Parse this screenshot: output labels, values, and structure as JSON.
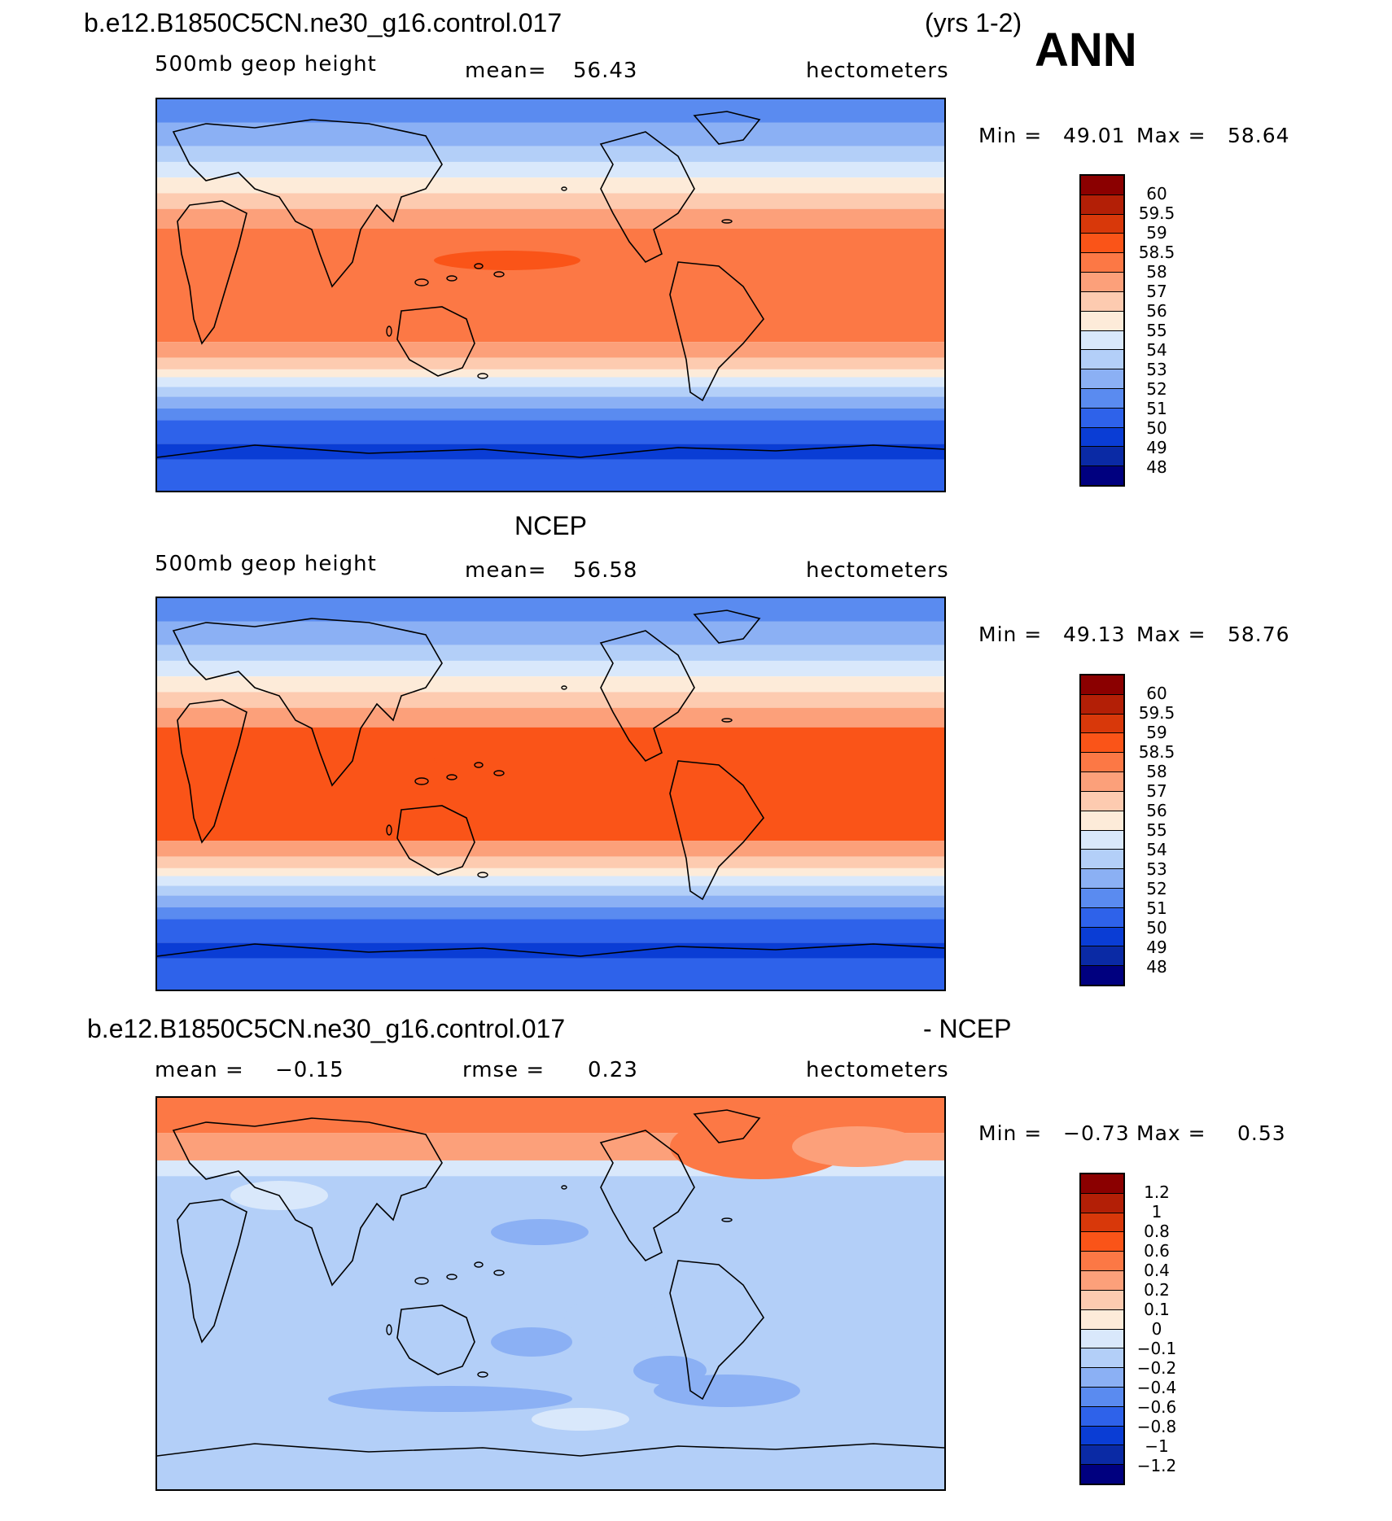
{
  "header": {
    "case_name": "b.e12.B1850C5CN.ne30_g16.control.017",
    "years": "(yrs 1-2)",
    "season": "ANN"
  },
  "panels": [
    {
      "title": "",
      "variable": "500mb geop height",
      "stat1_label": "mean=",
      "stat1_value": "56.43",
      "stat2_label": "",
      "stat2_value": "",
      "units": "hectometers",
      "min_label": "Min =",
      "min_value": "49.01",
      "max_label": "Max =",
      "max_value": "58.64",
      "levels": [
        "60",
        "59.5",
        "59",
        "58.5",
        "58",
        "57",
        "56",
        "55",
        "54",
        "53",
        "52",
        "51",
        "50",
        "49",
        "48"
      ],
      "colors": [
        "#8b0000",
        "#b31f06",
        "#d8380a",
        "#fa5418",
        "#fc7845",
        "#fca07a",
        "#fdcbb0",
        "#fdebd9",
        "#d9e8fb",
        "#b3cff8",
        "#8bb0f4",
        "#5a8bf0",
        "#2e62ea",
        "#0a3dd5",
        "#0a2aa5",
        "#00007f"
      ],
      "ocean_color": "#fc7845",
      "land_color": "#fa6d35"
    },
    {
      "title": "NCEP",
      "variable": "500mb geop height",
      "stat1_label": "mean=",
      "stat1_value": "56.58",
      "stat2_label": "",
      "stat2_value": "",
      "units": "hectometers",
      "min_label": "Min =",
      "min_value": "49.13",
      "max_label": "Max =",
      "max_value": "58.76",
      "levels": [
        "60",
        "59.5",
        "59",
        "58.5",
        "58",
        "57",
        "56",
        "55",
        "54",
        "53",
        "52",
        "51",
        "50",
        "49",
        "48"
      ],
      "colors": [
        "#8b0000",
        "#b31f06",
        "#d8380a",
        "#fa5418",
        "#fc7845",
        "#fca07a",
        "#fdcbb0",
        "#fdebd9",
        "#d9e8fb",
        "#b3cff8",
        "#8bb0f4",
        "#5a8bf0",
        "#2e62ea",
        "#0a3dd5",
        "#0a2aa5",
        "#00007f"
      ],
      "ocean_color": "#fa5418",
      "land_color": "#fa5418"
    },
    {
      "title_left": "b.e12.B1850C5CN.ne30_g16.control.017",
      "title_right": "- NCEP",
      "variable": "",
      "stat1_label": "mean =",
      "stat1_value": "−0.15",
      "stat2_label": "rmse =",
      "stat2_value": "0.23",
      "units": "hectometers",
      "min_label": "Min =",
      "min_value": "−0.73",
      "max_label": "Max =",
      "max_value": "0.53",
      "levels": [
        "1.2",
        "1",
        "0.8",
        "0.6",
        "0.4",
        "0.2",
        "0.1",
        "0",
        "−0.1",
        "−0.2",
        "−0.4",
        "−0.6",
        "−0.8",
        "−1",
        "−1.2"
      ],
      "colors": [
        "#8b0000",
        "#b31f06",
        "#d8380a",
        "#fa5418",
        "#fc7845",
        "#fca07a",
        "#fdcbb0",
        "#fdebd9",
        "#d9e8fb",
        "#b3cff8",
        "#8bb0f4",
        "#5a8bf0",
        "#2e62ea",
        "#0a3dd5",
        "#0a2aa5",
        "#00007f"
      ],
      "ocean_color": "#b3cff8",
      "land_color": "#b3cff8"
    }
  ]
}
